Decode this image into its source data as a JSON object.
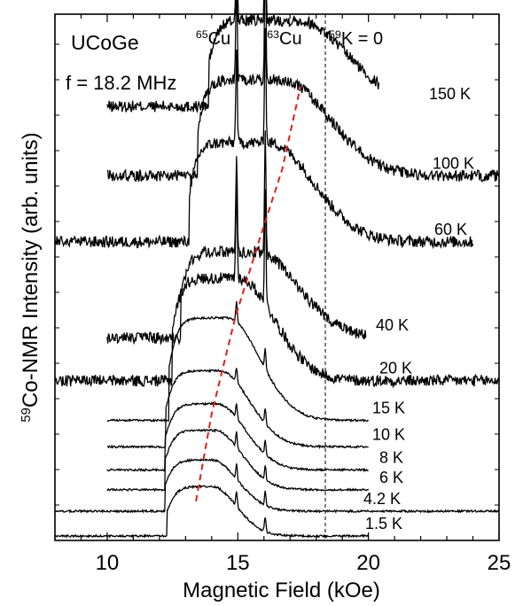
{
  "chart_data": {
    "type": "line",
    "title": "",
    "sample_label": "UCoGe",
    "frequency_label": "f = 18.2 MHz",
    "xlabel": "Magnetic Field  (kOe)",
    "ylabel": "59Co-NMR Intensity (arb. units)",
    "ylabel_parts": {
      "sup": "59",
      "text": "Co-NMR Intensity (arb. units)"
    },
    "xlim": [
      8,
      25
    ],
    "xticks": [
      10,
      15,
      20,
      25
    ],
    "y_units": "arb. units",
    "markers": [
      {
        "label": "Cu",
        "sup": "65",
        "x": 14.95,
        "style": "solid"
      },
      {
        "label": "Cu",
        "sup": "63",
        "x": 16.05,
        "style": "solid"
      },
      {
        "label": "K = 0",
        "sup": "59",
        "x": 18.35,
        "style": "dashed"
      }
    ],
    "series": [
      {
        "name": "150 K",
        "x_range": [
          10.0,
          20.4
        ],
        "baseline": 13.0,
        "center": 17.3,
        "width": 3.8,
        "amp": 2.6,
        "sharp": 0.0
      },
      {
        "name": "100 K",
        "x_range": [
          10.0,
          25.0
        ],
        "baseline": 10.9,
        "center": 16.7,
        "width": 3.6,
        "amp": 2.9,
        "sharp": 0.0
      },
      {
        "name": "60 K",
        "x_range": [
          8.0,
          24.0
        ],
        "baseline": 8.9,
        "center": 16.2,
        "width": 3.4,
        "amp": 3.0,
        "sharp": 0.0
      },
      {
        "name": "40 K",
        "x_range": [
          10.0,
          19.9
        ],
        "baseline": 6.0,
        "center": 15.7,
        "width": 3.2,
        "amp": 2.6,
        "sharp": 0.0
      },
      {
        "name": "20 K",
        "x_range": [
          8.0,
          25.0
        ],
        "baseline": 4.7,
        "center": 15.0,
        "width": 2.8,
        "amp": 3.1,
        "sharp": 0.0
      },
      {
        "name": "15 K",
        "x_range": [
          10.0,
          20.0
        ],
        "baseline": 3.5,
        "center": 14.6,
        "width": 2.5,
        "amp": 3.1,
        "sharp": 0.3
      },
      {
        "name": "10 K",
        "x_range": [
          10.0,
          20.0
        ],
        "baseline": 2.7,
        "center": 14.3,
        "width": 2.3,
        "amp": 2.3,
        "sharp": 0.0
      },
      {
        "name": "8 K",
        "x_range": [
          10.0,
          20.0
        ],
        "baseline": 2.0,
        "center": 14.2,
        "width": 2.2,
        "amp": 2.0,
        "sharp": 0.0
      },
      {
        "name": "6 K",
        "x_range": [
          10.0,
          20.0
        ],
        "baseline": 1.4,
        "center": 14.1,
        "width": 2.1,
        "amp": 1.8,
        "sharp": 0.0
      },
      {
        "name": "4.2 K",
        "x_range": [
          8.0,
          25.0
        ],
        "baseline": 0.75,
        "center": 14.0,
        "width": 2.0,
        "amp": 1.55,
        "sharp": 0.0
      },
      {
        "name": "1.5 K",
        "x_range": [
          8.0,
          20.0
        ],
        "baseline": 0.0,
        "center": 14.0,
        "width": 1.9,
        "amp": 1.5,
        "sharp": 0.5
      }
    ],
    "peak_trend": {
      "color": "#e0201a",
      "style": "dashed",
      "points": [
        [
          13.4,
          1.05
        ],
        [
          14.0,
          3.7
        ],
        [
          14.9,
          6.6
        ],
        [
          15.8,
          8.9
        ],
        [
          16.7,
          11.1
        ],
        [
          17.4,
          13.6
        ]
      ]
    },
    "grid": false,
    "legend": "labels placed at the right end of each trace"
  }
}
